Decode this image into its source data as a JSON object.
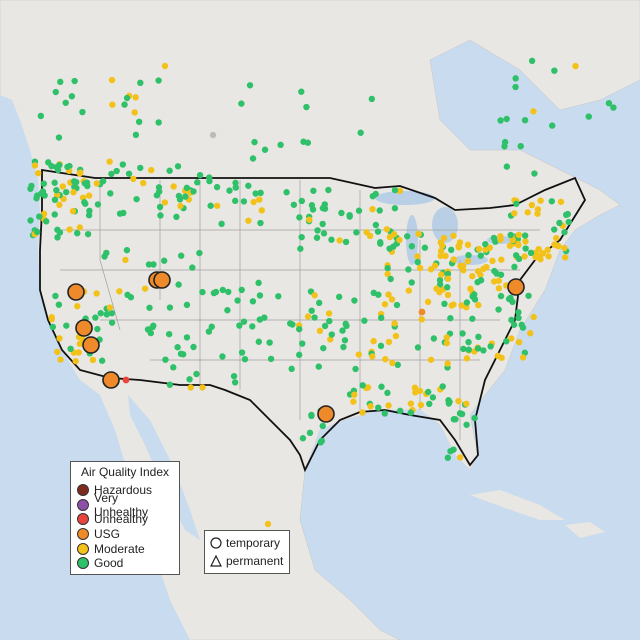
{
  "legend": {
    "title": "Air Quality Index",
    "items": [
      {
        "label": "Hazardous",
        "color": "#7e2b1f"
      },
      {
        "label": "Very Unhealthy",
        "color": "#8e4fa8"
      },
      {
        "label": "Unhealthy",
        "color": "#e8453c"
      },
      {
        "label": "USG",
        "color": "#ee8a2a"
      },
      {
        "label": "Moderate",
        "color": "#f2c21b"
      },
      {
        "label": "Good",
        "color": "#2fc06a"
      }
    ]
  },
  "shape_legend": {
    "temporary": "temporary",
    "permanent": "permanent"
  },
  "colors": {
    "land": "#e9e7e3",
    "water": "#b9cfe6",
    "ocean": "#c9dbee",
    "border": "#111111",
    "state_line": "#9a9a9a",
    "inactive": "#bcbcbc"
  }
}
